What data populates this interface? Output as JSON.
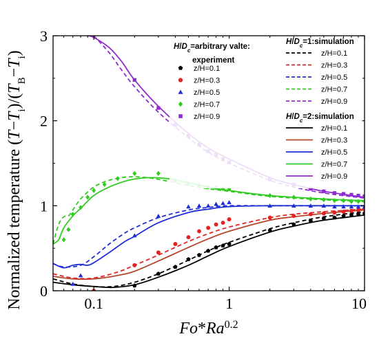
{
  "chart_data": {
    "type": "line",
    "xlabel": {
      "base": "Fo",
      "mid": "*",
      "base2": "Ra",
      "sup": "0.2"
    },
    "ylabel": {
      "pre": "Normalized temperature (",
      "t1": "T",
      "m1": "−",
      "t2": "T",
      "s2": "i",
      "mid": ")/(",
      "t3": "T",
      "s3": "B",
      "m2": "−",
      "t4": "T",
      "s4": "i",
      "post": ")"
    },
    "x_scale": "log",
    "xlim": [
      0.05,
      10
    ],
    "ylim": [
      0,
      3
    ],
    "x_ticks": [
      0.1,
      1,
      10
    ],
    "x_tick_labels": [
      "0.1",
      "1",
      "10"
    ],
    "y_ticks": [
      0,
      1,
      2,
      3
    ],
    "y_tick_labels": [
      "0",
      "1",
      "2",
      "3"
    ],
    "legend": {
      "experiment_header": {
        "h": "H",
        "slash": "/",
        "d": "D",
        "c": "c",
        "rest": "=arbitrary valte:"
      },
      "experiment_sub": "experiment",
      "sim1_header": {
        "h": "H",
        "slash": "/",
        "d": "D",
        "c": "c",
        "rest": "=1:simulation"
      },
      "sim2_header": {
        "h": "H",
        "slash": "/",
        "d": "D",
        "c": "c",
        "rest": "=2:simulation"
      },
      "labels": [
        "z/H=0.1",
        "z/H=0.3",
        "z/H=0.5",
        "z/H=0.7",
        "z/H=0.9"
      ],
      "placement": "top-right"
    },
    "colors": [
      "#000000",
      "#c0392b",
      "#1f2ed6",
      "#2ecc1f",
      "#8e2bd1"
    ],
    "sim1_colors": [
      "#000000",
      "#e52222",
      "#1f2ed6",
      "#2ecc1f",
      "#8e2bd1"
    ],
    "sim2_colors": [
      "#000000",
      "#b5452a",
      "#1f2ed6",
      "#2ecc1f",
      "#8e2bd1"
    ],
    "marker_colors": [
      "#000000",
      "#e52222",
      "#1f2ed6",
      "#2ecc1f",
      "#8e2bd1"
    ],
    "markers": [
      "pentagon",
      "circle",
      "triangle",
      "diamond",
      "square"
    ],
    "experiment": [
      {
        "label": "z/H=0.1",
        "x": [
          0.2,
          0.3,
          0.4,
          0.5,
          0.6,
          0.7,
          0.8,
          0.9,
          1.0,
          2,
          3,
          4,
          5,
          6,
          7,
          8,
          9,
          10
        ],
        "y": [
          0.06,
          0.2,
          0.28,
          0.37,
          0.42,
          0.47,
          0.51,
          0.53,
          0.55,
          0.71,
          0.78,
          0.82,
          0.85,
          0.86,
          0.88,
          0.89,
          0.9,
          0.91
        ]
      },
      {
        "label": "z/H=0.3",
        "x": [
          0.1,
          0.2,
          0.3,
          0.4,
          0.5,
          0.6,
          0.7,
          0.8,
          0.9,
          1.0,
          2,
          3,
          4,
          5,
          6,
          7,
          8,
          9,
          10
        ],
        "y": [
          0.0,
          0.3,
          0.45,
          0.55,
          0.63,
          0.7,
          0.74,
          0.78,
          0.8,
          0.84,
          0.86,
          0.88,
          0.9,
          0.91,
          0.92,
          0.93,
          0.94,
          0.95,
          0.96
        ]
      },
      {
        "label": "z/H=0.5",
        "x": [
          0.07,
          0.08,
          0.2,
          0.3,
          0.5,
          0.6,
          0.7,
          0.8,
          0.9,
          1.0,
          2,
          3,
          4,
          5,
          6,
          7,
          8,
          9,
          10
        ],
        "y": [
          0.08,
          0.18,
          0.65,
          0.88,
          0.99,
          1.0,
          1.0,
          1.02,
          1.03,
          1.04,
          1.0,
          1.0,
          1.0,
          1.0,
          0.99,
          0.99,
          0.99,
          0.99,
          0.99
        ]
      },
      {
        "label": "z/H=0.7",
        "x": [
          0.06,
          0.065,
          0.07,
          0.08,
          0.09,
          0.1,
          0.12,
          0.15,
          0.2,
          0.3,
          0.4,
          0.5,
          0.6,
          0.7,
          0.8,
          0.9,
          1.0,
          2,
          3,
          4,
          5,
          6,
          7,
          8,
          9,
          10
        ],
        "y": [
          0.6,
          0.72,
          0.9,
          0.98,
          1.1,
          1.18,
          1.25,
          1.32,
          1.38,
          1.38,
          1.3,
          1.26,
          1.24,
          1.22,
          1.21,
          1.2,
          1.2,
          1.12,
          1.1,
          1.08,
          1.07,
          1.06,
          1.06,
          1.05,
          1.05,
          1.05
        ]
      },
      {
        "label": "z/H=0.9",
        "x": [
          0.2,
          0.3,
          0.4,
          0.5,
          0.6,
          0.7,
          0.8,
          0.9,
          1.0,
          2,
          3,
          4,
          5,
          6,
          7,
          8,
          9,
          10
        ],
        "y": [
          2.48,
          2.15,
          1.95,
          1.82,
          1.72,
          1.64,
          1.6,
          1.55,
          1.51,
          1.31,
          1.25,
          1.2,
          1.17,
          1.15,
          1.14,
          1.13,
          1.12,
          1.11
        ]
      }
    ],
    "simulation_HD1": [
      {
        "label": "z/H=0.1",
        "x": [
          0.05,
          0.07,
          0.1,
          0.14,
          0.2,
          0.3,
          0.5,
          0.7,
          1.0,
          2,
          3,
          5,
          10
        ],
        "y": [
          0.14,
          0.08,
          0.05,
          0.05,
          0.1,
          0.2,
          0.36,
          0.47,
          0.57,
          0.73,
          0.8,
          0.87,
          0.93
        ]
      },
      {
        "label": "z/H=0.3",
        "x": [
          0.05,
          0.07,
          0.1,
          0.15,
          0.2,
          0.3,
          0.5,
          0.7,
          1.0,
          2,
          3,
          5,
          10
        ],
        "y": [
          0.2,
          0.15,
          0.15,
          0.22,
          0.3,
          0.42,
          0.58,
          0.67,
          0.75,
          0.86,
          0.9,
          0.93,
          0.96
        ]
      },
      {
        "label": "z/H=0.5",
        "x": [
          0.05,
          0.06,
          0.08,
          0.1,
          0.13,
          0.17,
          0.2,
          0.3,
          0.5,
          0.7,
          1.0,
          2,
          5,
          10
        ],
        "y": [
          0.32,
          0.28,
          0.3,
          0.4,
          0.55,
          0.68,
          0.74,
          0.86,
          0.95,
          0.98,
          1.0,
          1.0,
          1.0,
          1.0
        ]
      },
      {
        "label": "z/H=0.7",
        "x": [
          0.05,
          0.055,
          0.06,
          0.065,
          0.07,
          0.08,
          0.1,
          0.13,
          0.18,
          0.25,
          0.35,
          0.5,
          0.7,
          1.0,
          2,
          5,
          10
        ],
        "y": [
          0.55,
          0.78,
          0.87,
          0.88,
          0.95,
          1.08,
          1.22,
          1.3,
          1.34,
          1.33,
          1.29,
          1.24,
          1.2,
          1.17,
          1.11,
          1.07,
          1.05
        ]
      },
      {
        "label": "z/H=0.9",
        "x": [
          0.1,
          0.13,
          0.16,
          0.2,
          0.3,
          0.5,
          0.7,
          1.0,
          2,
          3,
          5,
          10
        ],
        "y": [
          3.0,
          2.8,
          2.6,
          2.4,
          2.1,
          1.8,
          1.63,
          1.5,
          1.3,
          1.22,
          1.15,
          1.09
        ]
      }
    ],
    "simulation_HD2": [
      {
        "label": "z/H=0.1",
        "x": [
          0.05,
          0.07,
          0.1,
          0.14,
          0.2,
          0.3,
          0.5,
          0.7,
          1.0,
          2,
          3,
          5,
          10
        ],
        "y": [
          0.1,
          0.07,
          0.05,
          0.04,
          0.07,
          0.16,
          0.3,
          0.41,
          0.52,
          0.69,
          0.76,
          0.83,
          0.89
        ]
      },
      {
        "label": "z/H=0.3",
        "x": [
          0.05,
          0.07,
          0.1,
          0.15,
          0.2,
          0.3,
          0.5,
          0.7,
          1.0,
          2,
          3,
          5,
          10
        ],
        "y": [
          0.17,
          0.14,
          0.14,
          0.18,
          0.23,
          0.35,
          0.51,
          0.61,
          0.7,
          0.83,
          0.87,
          0.91,
          0.95
        ]
      },
      {
        "label": "z/H=0.5",
        "x": [
          0.05,
          0.06,
          0.07,
          0.08,
          0.09,
          0.1,
          0.13,
          0.17,
          0.2,
          0.3,
          0.5,
          0.7,
          1.0,
          2,
          5,
          10
        ],
        "y": [
          0.32,
          0.27,
          0.3,
          0.31,
          0.3,
          0.33,
          0.45,
          0.58,
          0.64,
          0.8,
          0.92,
          0.96,
          0.99,
          1.0,
          1.0,
          1.0
        ]
      },
      {
        "label": "z/H=0.7",
        "x": [
          0.05,
          0.055,
          0.06,
          0.07,
          0.08,
          0.1,
          0.13,
          0.18,
          0.25,
          0.35,
          0.5,
          0.7,
          1.0,
          2,
          5,
          10
        ],
        "y": [
          0.55,
          0.6,
          0.74,
          0.88,
          0.97,
          1.12,
          1.22,
          1.3,
          1.33,
          1.32,
          1.27,
          1.22,
          1.18,
          1.12,
          1.08,
          1.06
        ]
      },
      {
        "label": "z/H=0.9",
        "x": [
          0.09,
          0.1,
          0.13,
          0.16,
          0.2,
          0.3,
          0.5,
          0.7,
          1.0,
          2,
          3,
          5,
          10
        ],
        "y": [
          3.0,
          2.98,
          2.86,
          2.7,
          2.48,
          2.17,
          1.85,
          1.68,
          1.55,
          1.33,
          1.25,
          1.17,
          1.1
        ]
      }
    ]
  }
}
